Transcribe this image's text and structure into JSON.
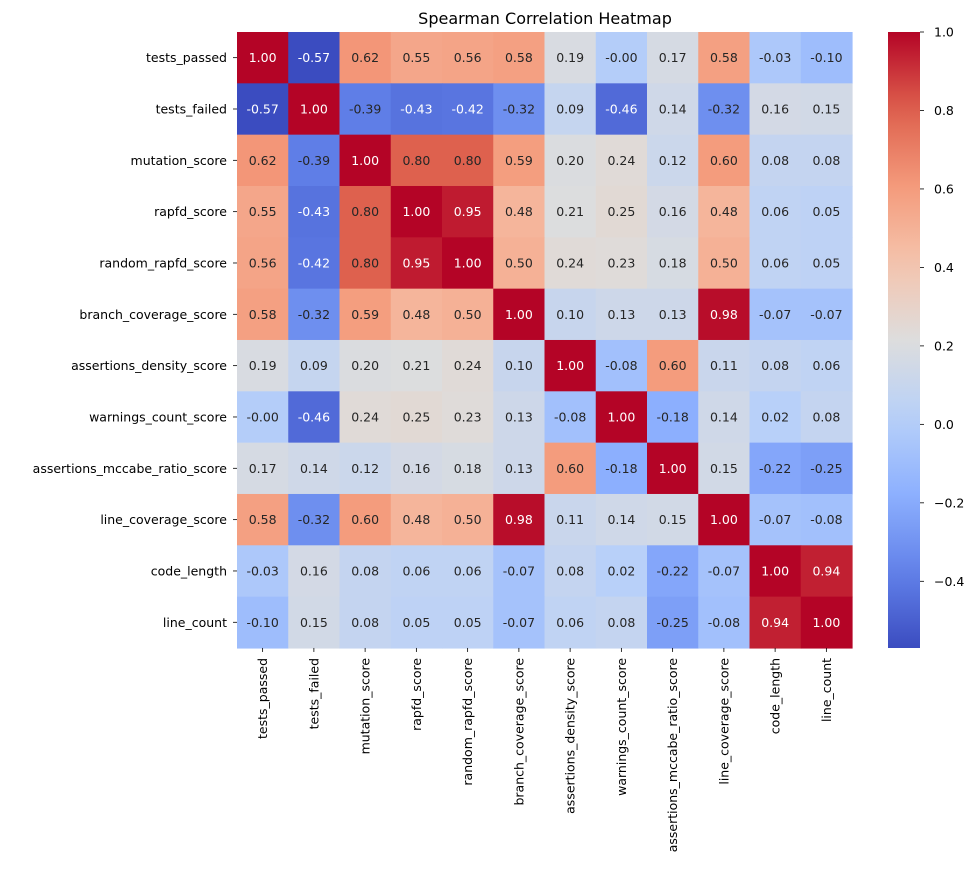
{
  "chart_data": {
    "type": "heatmap",
    "title": "Spearman Correlation Heatmap",
    "colormap": "coolwarm",
    "vmin": -0.57,
    "vmax": 1.0,
    "value_format": "2 decimals",
    "labels": [
      "tests_passed",
      "tests_failed",
      "mutation_score",
      "rapfd_score",
      "random_rapfd_score",
      "branch_coverage_score",
      "assertions_density_score",
      "warnings_count_score",
      "assertions_mccabe_ratio_score",
      "line_coverage_score",
      "code_length",
      "line_count"
    ],
    "matrix": [
      [
        1.0,
        -0.57,
        0.62,
        0.55,
        0.56,
        0.58,
        0.19,
        -0.0,
        0.17,
        0.58,
        -0.03,
        -0.1
      ],
      [
        -0.57,
        1.0,
        -0.39,
        -0.43,
        -0.42,
        -0.32,
        0.09,
        -0.46,
        0.14,
        -0.32,
        0.16,
        0.15
      ],
      [
        0.62,
        -0.39,
        1.0,
        0.8,
        0.8,
        0.59,
        0.2,
        0.24,
        0.12,
        0.6,
        0.08,
        0.08
      ],
      [
        0.55,
        -0.43,
        0.8,
        1.0,
        0.95,
        0.48,
        0.21,
        0.25,
        0.16,
        0.48,
        0.06,
        0.05
      ],
      [
        0.56,
        -0.42,
        0.8,
        0.95,
        1.0,
        0.5,
        0.24,
        0.23,
        0.18,
        0.5,
        0.06,
        0.05
      ],
      [
        0.58,
        -0.32,
        0.59,
        0.48,
        0.5,
        1.0,
        0.1,
        0.13,
        0.13,
        0.98,
        -0.07,
        -0.07
      ],
      [
        0.19,
        0.09,
        0.2,
        0.21,
        0.24,
        0.1,
        1.0,
        -0.08,
        0.6,
        0.11,
        0.08,
        0.06
      ],
      [
        -0.0,
        -0.46,
        0.24,
        0.25,
        0.23,
        0.13,
        -0.08,
        1.0,
        -0.18,
        0.14,
        0.02,
        0.08
      ],
      [
        0.17,
        0.14,
        0.12,
        0.16,
        0.18,
        0.13,
        0.6,
        -0.18,
        1.0,
        0.15,
        -0.22,
        -0.25
      ],
      [
        0.58,
        -0.32,
        0.6,
        0.48,
        0.5,
        0.98,
        0.11,
        0.14,
        0.15,
        1.0,
        -0.07,
        -0.08
      ],
      [
        -0.03,
        0.16,
        0.08,
        0.06,
        0.06,
        -0.07,
        0.08,
        0.02,
        -0.22,
        -0.07,
        1.0,
        0.94
      ],
      [
        -0.1,
        0.15,
        0.08,
        0.05,
        0.05,
        -0.07,
        0.06,
        0.08,
        -0.25,
        -0.08,
        0.94,
        1.0
      ]
    ],
    "colorbar": {
      "ticks": [
        "1.0",
        "0.8",
        "0.6",
        "0.4",
        "0.2",
        "0.0",
        "−0.2",
        "−0.4"
      ],
      "tick_values": [
        1.0,
        0.8,
        0.6,
        0.4,
        0.2,
        0.0,
        -0.2,
        -0.4
      ]
    }
  }
}
